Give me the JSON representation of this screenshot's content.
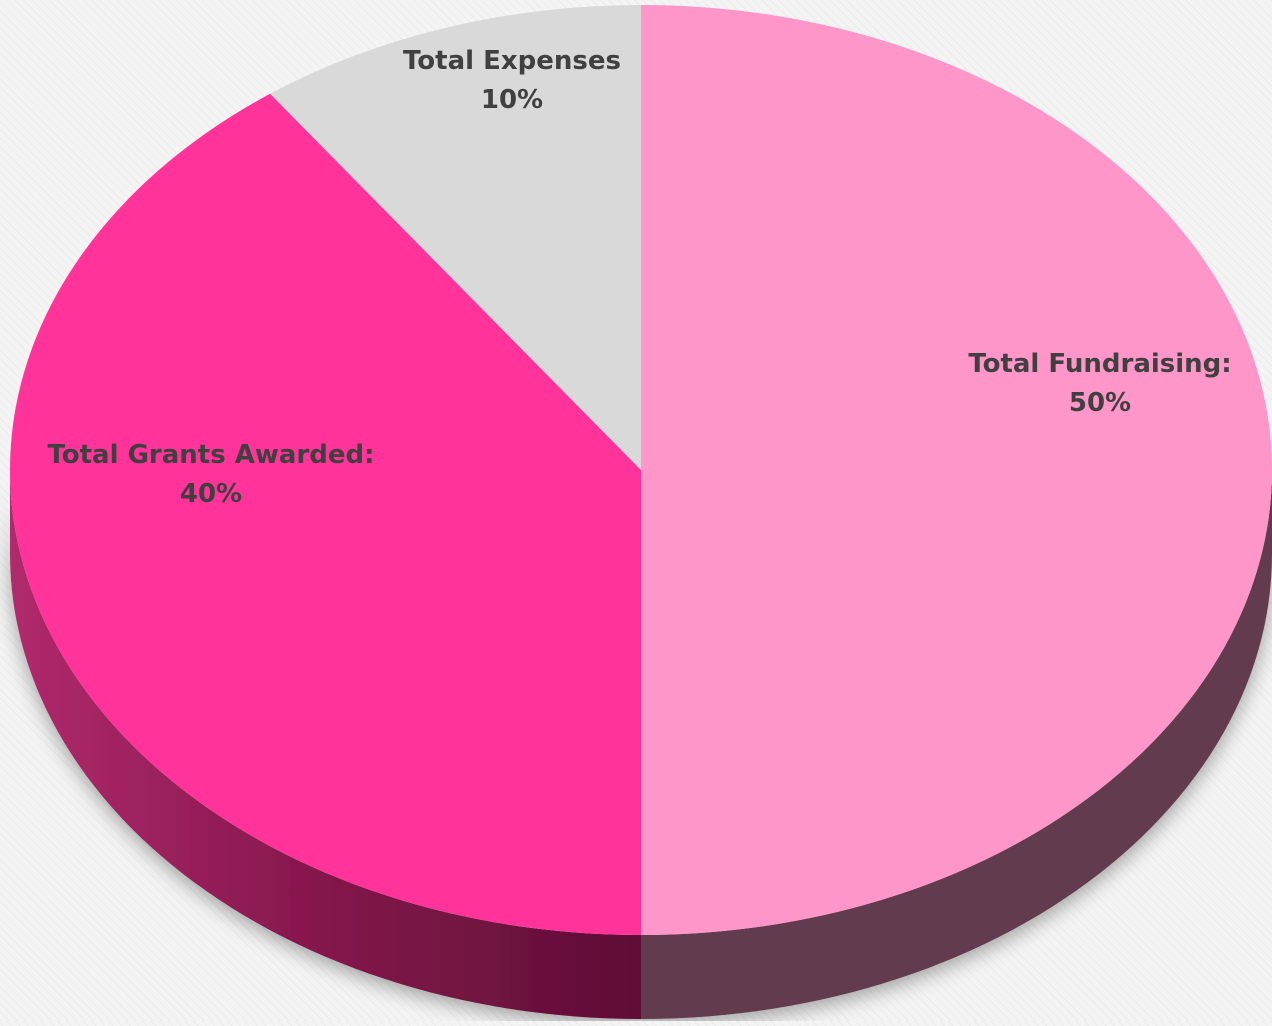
{
  "chart_data": {
    "type": "pie",
    "title": "",
    "style": "3d",
    "slices": [
      {
        "label": "Total Fundraising:",
        "value": 50,
        "value_label": "50%",
        "color": "#ff96c9",
        "side_color": "#643a4f"
      },
      {
        "label": "Total Grants Awarded:",
        "value": 40,
        "value_label": "40%",
        "color": "#ff3399",
        "side_color": "#7a1444"
      },
      {
        "label": "Total Expenses",
        "value": 10,
        "value_label": "10%",
        "color": "#d9d9d9",
        "side_color": "#8a8a8a"
      }
    ],
    "legend": "none"
  }
}
